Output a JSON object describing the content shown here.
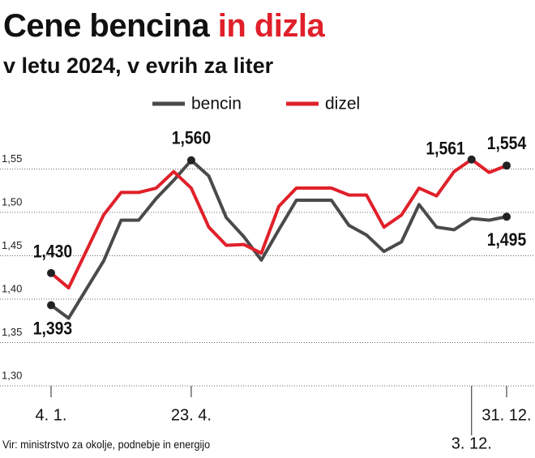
{
  "chart_data": {
    "type": "line",
    "title": {
      "main": "Cene bencina",
      "highlight": "in dizla"
    },
    "subtitle": "v letu 2024, v evrih za liter",
    "source": "Vir: ministrstvo za okolje, podnebje in energijo",
    "categories": [
      "4. 1.",
      null,
      null,
      null,
      null,
      null,
      null,
      null,
      "23. 4.",
      null,
      null,
      null,
      null,
      null,
      null,
      null,
      null,
      null,
      null,
      null,
      null,
      null,
      null,
      null,
      "3. 12.",
      null,
      "31. 12."
    ],
    "series": [
      {
        "name": "bencin",
        "color": "#4a4a4a",
        "values": [
          1.393,
          1.378,
          1.411,
          1.444,
          1.491,
          1.491,
          1.516,
          1.537,
          1.56,
          1.542,
          1.494,
          1.472,
          1.445,
          1.48,
          1.514,
          1.514,
          1.514,
          1.485,
          1.474,
          1.455,
          1.466,
          1.509,
          1.483,
          1.48,
          1.493,
          1.491,
          1.495
        ],
        "value_labels": [
          "1,393",
          null,
          null,
          null,
          null,
          null,
          null,
          null,
          "1,560",
          null,
          null,
          null,
          null,
          null,
          null,
          null,
          null,
          null,
          null,
          null,
          null,
          null,
          null,
          null,
          null,
          null,
          "1,495"
        ]
      },
      {
        "name": "dizel",
        "color": "#e0202a",
        "values": [
          1.43,
          1.413,
          1.455,
          1.497,
          1.523,
          1.523,
          1.528,
          1.547,
          1.528,
          1.483,
          1.462,
          1.463,
          1.453,
          1.507,
          1.528,
          1.528,
          1.528,
          1.52,
          1.52,
          1.483,
          1.497,
          1.528,
          1.519,
          1.547,
          1.561,
          1.546,
          1.554
        ],
        "value_labels": [
          "1,430",
          null,
          null,
          null,
          null,
          null,
          null,
          null,
          null,
          null,
          null,
          null,
          null,
          null,
          null,
          null,
          null,
          null,
          null,
          null,
          null,
          null,
          null,
          null,
          "1,561",
          null,
          "1,554"
        ]
      }
    ],
    "ylim": [
      1.3,
      1.6
    ],
    "yticks": [
      {
        "value": 1.3,
        "label": "1,30"
      },
      {
        "value": 1.35,
        "label": "1,35"
      },
      {
        "value": 1.4,
        "label": "1,40"
      },
      {
        "value": 1.45,
        "label": "1,45"
      },
      {
        "value": 1.5,
        "label": "1,50"
      },
      {
        "value": 1.55,
        "label": "1,55"
      }
    ],
    "grid": true,
    "legend": "top"
  }
}
